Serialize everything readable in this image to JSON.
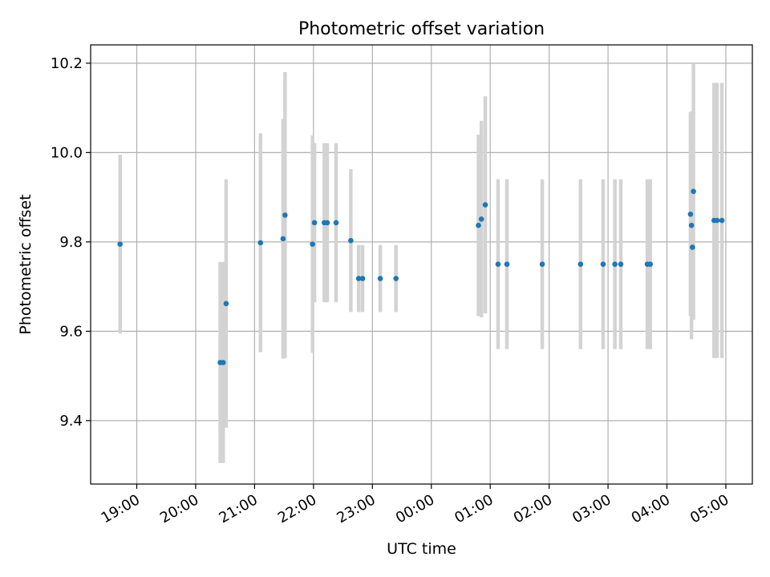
{
  "chart_data": {
    "type": "scatter",
    "title": "Photometric offset variation",
    "xlabel": "UTC time",
    "ylabel": "Photometric offset",
    "grid": true,
    "x_unit": "UTC time (HH:MM), night spanning midnight",
    "xlim": [
      "18:13",
      "05:27"
    ],
    "ylim": [
      9.258,
      10.241
    ],
    "x_ticks": [
      "19:00",
      "20:00",
      "21:00",
      "22:00",
      "23:00",
      "00:00",
      "01:00",
      "02:00",
      "03:00",
      "04:00",
      "05:00"
    ],
    "y_ticks": [
      "9.4",
      "9.6",
      "9.8",
      "10.0",
      "10.2"
    ],
    "marker_color": "#1f77b4",
    "errorbar_color": "#d3d3d3",
    "points": [
      {
        "time": "18:43",
        "y": 9.795,
        "err": 0.2
      },
      {
        "time": "20:25",
        "y": 9.53,
        "err": 0.225
      },
      {
        "time": "20:28",
        "y": 9.53,
        "err": 0.225
      },
      {
        "time": "20:31",
        "y": 9.662,
        "err": 0.278
      },
      {
        "time": "21:06",
        "y": 9.798,
        "err": 0.245
      },
      {
        "time": "21:29",
        "y": 9.807,
        "err": 0.268
      },
      {
        "time": "21:31",
        "y": 9.86,
        "err": 0.32
      },
      {
        "time": "21:59",
        "y": 9.795,
        "err": 0.243
      },
      {
        "time": "22:01",
        "y": 9.843,
        "err": 0.178
      },
      {
        "time": "22:11",
        "y": 9.843,
        "err": 0.178
      },
      {
        "time": "22:14",
        "y": 9.843,
        "err": 0.178
      },
      {
        "time": "22:23",
        "y": 9.843,
        "err": 0.178
      },
      {
        "time": "22:38",
        "y": 9.803,
        "err": 0.16
      },
      {
        "time": "22:46",
        "y": 9.718,
        "err": 0.075
      },
      {
        "time": "22:50",
        "y": 9.718,
        "err": 0.075
      },
      {
        "time": "23:08",
        "y": 9.718,
        "err": 0.075
      },
      {
        "time": "23:24",
        "y": 9.718,
        "err": 0.075
      },
      {
        "time": "00:48",
        "y": 9.837,
        "err": 0.203
      },
      {
        "time": "00:51",
        "y": 9.851,
        "err": 0.22
      },
      {
        "time": "00:55",
        "y": 9.883,
        "err": 0.243
      },
      {
        "time": "01:08",
        "y": 9.75,
        "err": 0.19
      },
      {
        "time": "01:17",
        "y": 9.75,
        "err": 0.19
      },
      {
        "time": "01:53",
        "y": 9.75,
        "err": 0.19
      },
      {
        "time": "02:32",
        "y": 9.75,
        "err": 0.19
      },
      {
        "time": "02:55",
        "y": 9.75,
        "err": 0.19
      },
      {
        "time": "03:07",
        "y": 9.75,
        "err": 0.19
      },
      {
        "time": "03:13",
        "y": 9.75,
        "err": 0.19
      },
      {
        "time": "03:40",
        "y": 9.75,
        "err": 0.19
      },
      {
        "time": "03:43",
        "y": 9.75,
        "err": 0.19
      },
      {
        "time": "04:24",
        "y": 9.862,
        "err": 0.228
      },
      {
        "time": "04:25",
        "y": 9.837,
        "err": 0.255
      },
      {
        "time": "04:26",
        "y": 9.788,
        "err": 0.163
      },
      {
        "time": "04:27",
        "y": 9.913,
        "err": 0.287
      },
      {
        "time": "04:48",
        "y": 9.848,
        "err": 0.308
      },
      {
        "time": "04:51",
        "y": 9.848,
        "err": 0.308
      },
      {
        "time": "04:56",
        "y": 9.848,
        "err": 0.308
      }
    ]
  }
}
